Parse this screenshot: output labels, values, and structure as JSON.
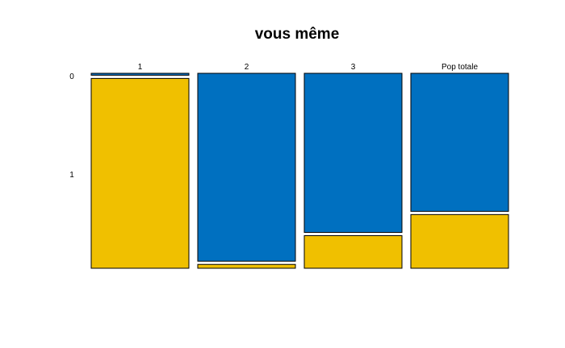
{
  "chart_data": {
    "type": "mosaic",
    "title": "vous même",
    "categories": [
      "1",
      "2",
      "3",
      "Pop totale"
    ],
    "row_levels": [
      "0",
      "1"
    ],
    "series": [
      {
        "level": "0",
        "color": "#0070C0",
        "values": [
          0.01,
          0.98,
          0.83,
          0.72
        ]
      },
      {
        "level": "1",
        "color": "#F0C000",
        "values": [
          0.99,
          0.02,
          0.17,
          0.28
        ]
      }
    ],
    "colors": {
      "0": "#0070C0",
      "1": "#F0C000",
      "border": "#000000"
    }
  }
}
